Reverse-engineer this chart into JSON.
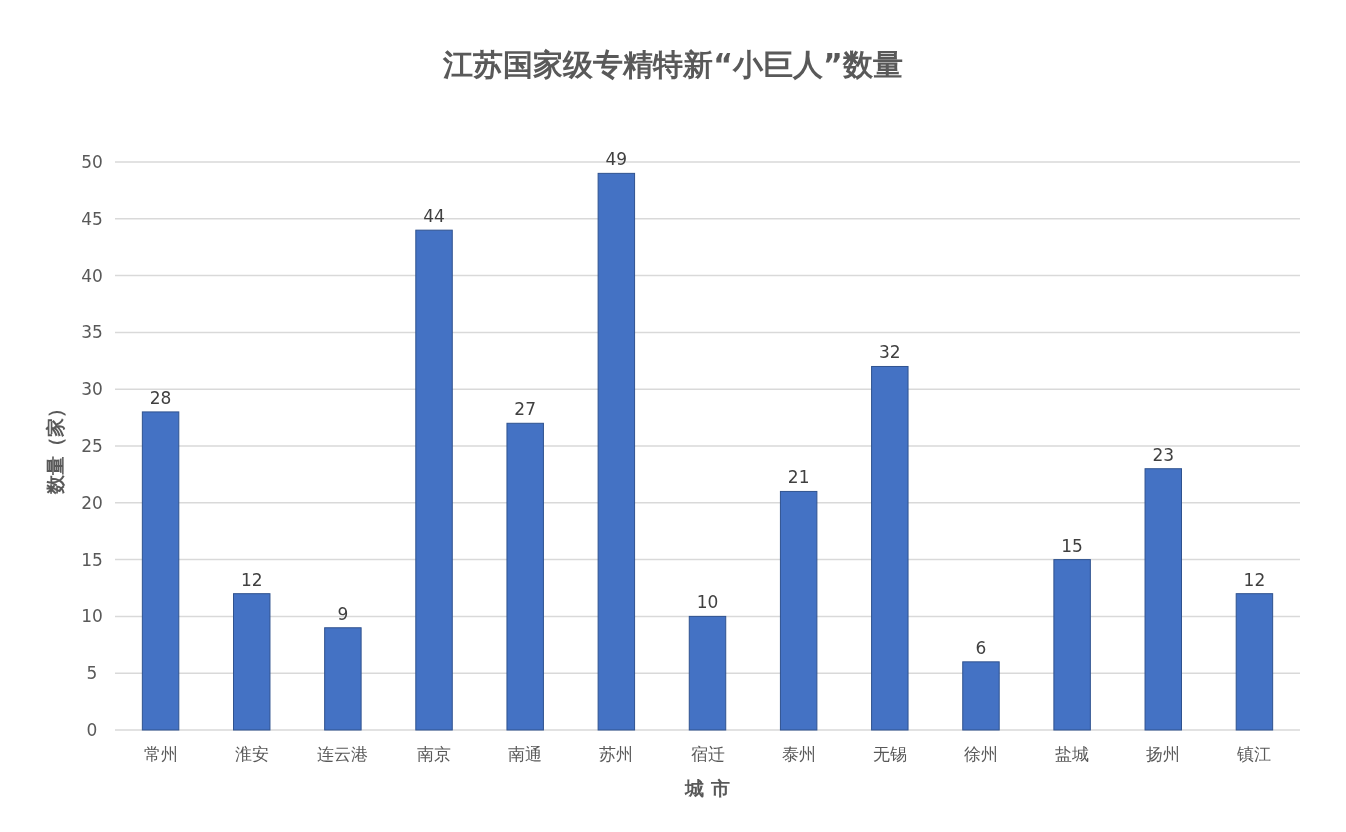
{
  "chart_data": {
    "type": "bar",
    "title": "江苏国家级专精特新“小巨人”数量",
    "xlabel": "城 市",
    "ylabel": "数量（家）",
    "categories": [
      "常州",
      "淮安",
      "连云港",
      "南京",
      "南通",
      "苏州",
      "宿迁",
      "泰州",
      "无锡",
      "徐州",
      "盐城",
      "扬州",
      "镇江"
    ],
    "values": [
      28,
      12,
      9,
      44,
      27,
      49,
      10,
      21,
      32,
      6,
      15,
      23,
      12
    ],
    "color": "#4472c4",
    "ylim": [
      0,
      50
    ],
    "yticks": [
      0,
      5,
      10,
      15,
      20,
      25,
      30,
      35,
      40,
      45,
      50
    ],
    "grid": "y",
    "data_labels": true
  }
}
